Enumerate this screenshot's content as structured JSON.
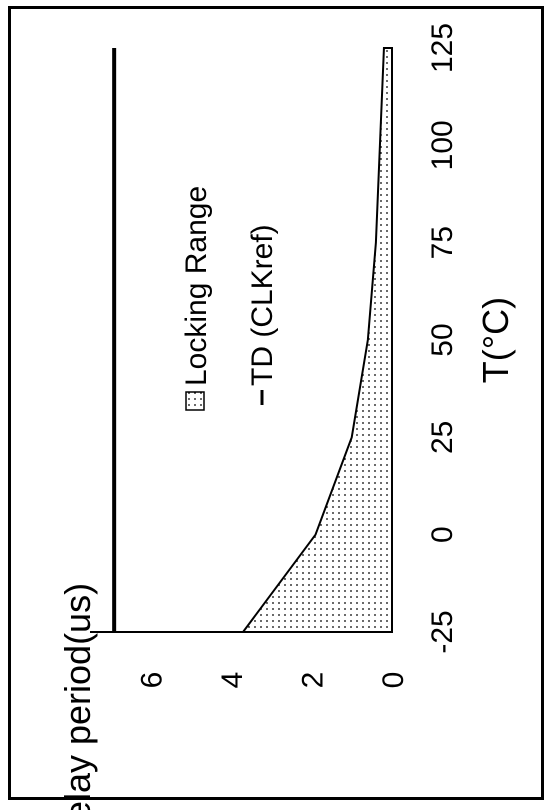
{
  "chart_data": {
    "type": "area",
    "orientation": "rotated-90-ccw",
    "x": [
      -25,
      0,
      25,
      50,
      75,
      100,
      125
    ],
    "xlabel": "T(°C)",
    "ylabel": "delay period(us)",
    "xticks": [
      "-25",
      "0",
      "25",
      "50",
      "75",
      "100",
      "125"
    ],
    "yticks": [
      "0",
      "2",
      "4",
      "6"
    ],
    "xlim": [
      -25,
      125
    ],
    "ylim": [
      0,
      7.5
    ],
    "grid": false,
    "legend_placement": "upper-middle",
    "series": [
      {
        "name": "Locking Range",
        "kind": "area",
        "values": [
          3.7,
          1.9,
          1.0,
          0.6,
          0.4,
          0.3,
          0.2
        ],
        "fill": "dotted"
      },
      {
        "name": "TD (CLKref)",
        "kind": "line",
        "values": [
          6.9,
          6.9,
          6.9,
          6.9,
          6.9,
          6.9,
          6.9
        ],
        "color": "#000000"
      }
    ]
  }
}
